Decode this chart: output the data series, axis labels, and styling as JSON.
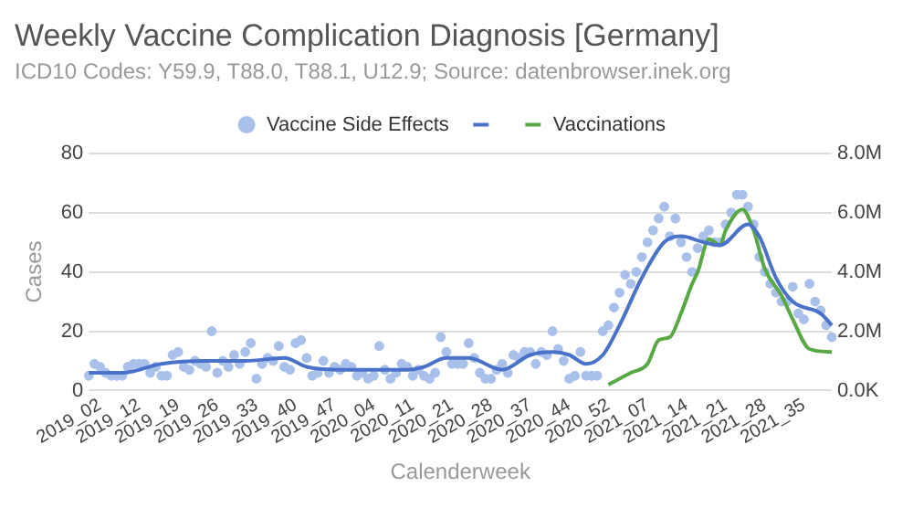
{
  "chart_data": {
    "type": "line",
    "title": "Weekly Vaccine Complication Diagnosis [Germany]",
    "subtitle": "ICD10 Codes: Y59.9, T88.0, T88.1, U12.9; Source: datenbrowser.inek.org",
    "xlabel": "Calenderweek",
    "ylabel": "Cases",
    "categories": [
      null,
      null,
      "2019_02",
      null,
      null,
      null,
      null,
      null,
      null,
      "2019_12",
      null,
      null,
      null,
      null,
      null,
      null,
      "2019_19",
      null,
      null,
      null,
      null,
      null,
      null,
      "2019_26",
      null,
      null,
      null,
      null,
      null,
      null,
      "2019_33",
      null,
      null,
      null,
      null,
      null,
      null,
      "2019_40",
      null,
      null,
      null,
      null,
      null,
      null,
      "2019_47",
      null,
      null,
      null,
      null,
      null,
      null,
      "2020_04",
      null,
      null,
      null,
      null,
      null,
      null,
      "2020_11",
      null,
      null,
      null,
      null,
      null,
      null,
      "2020_21",
      null,
      null,
      null,
      null,
      null,
      null,
      "2020_28",
      null,
      null,
      null,
      null,
      null,
      null,
      "2020_37",
      null,
      null,
      null,
      null,
      null,
      null,
      "2020_44",
      null,
      null,
      null,
      null,
      null,
      null,
      "2020_52",
      null,
      null,
      null,
      null,
      null,
      null,
      "2021_07",
      null,
      null,
      null,
      null,
      null,
      null,
      "2021_14",
      null,
      null,
      null,
      null,
      null,
      null,
      "2021_21",
      null,
      null,
      null,
      null,
      null,
      null,
      "2021_28",
      null,
      null,
      null,
      null,
      null,
      null,
      "2021_35",
      null,
      null,
      null,
      null,
      null
    ],
    "series": [
      {
        "type": "scatter",
        "name": "Vaccine Side Effects",
        "color": "#a9c1ea",
        "marker": "circle",
        "values": [
          5,
          9,
          8,
          6,
          5,
          5,
          5,
          8,
          9,
          9,
          9,
          6,
          8,
          5,
          5,
          12,
          13,
          8,
          7,
          10,
          9,
          8,
          20,
          6,
          10,
          8,
          12,
          9,
          13,
          16,
          4,
          9,
          11,
          10,
          15,
          8,
          7,
          16,
          17,
          11,
          5,
          6,
          10,
          6,
          8,
          7,
          9,
          8,
          5,
          6,
          4,
          5,
          15,
          7,
          4,
          6,
          9,
          8,
          5,
          7,
          5,
          4,
          6,
          18,
          13,
          9,
          9,
          9,
          16,
          11,
          6,
          4,
          4,
          7,
          9,
          6,
          12,
          11,
          13,
          13,
          9,
          13,
          12,
          20,
          14,
          10,
          4,
          5,
          13,
          5,
          5,
          5,
          20,
          22,
          28,
          33,
          39,
          36,
          40,
          45,
          50,
          54,
          58,
          62,
          52,
          58,
          50,
          45,
          40,
          48,
          52,
          54,
          50,
          50,
          56,
          60,
          66,
          66,
          62,
          56,
          45,
          40,
          36,
          33,
          30,
          30,
          35,
          26,
          24,
          36,
          30,
          27,
          22,
          18
        ]
      },
      {
        "type": "line",
        "color": "#4a72c8",
        "values": [
          6,
          null,
          null,
          null,
          null,
          null,
          6,
          null,
          null,
          null,
          null,
          null,
          null,
          9,
          null,
          null,
          null,
          null,
          null,
          null,
          null,
          10,
          null,
          null,
          null,
          null,
          null,
          null,
          10,
          null,
          null,
          null,
          null,
          null,
          null,
          11,
          null,
          null,
          null,
          8,
          null,
          null,
          null,
          null,
          null,
          null,
          7,
          null,
          null,
          null,
          null,
          null,
          null,
          null,
          null,
          null,
          null,
          7,
          null,
          null,
          8,
          null,
          null,
          null,
          11,
          null,
          null,
          null,
          11,
          null,
          null,
          null,
          null,
          null,
          7,
          null,
          null,
          null,
          null,
          12,
          null,
          null,
          null,
          13,
          null,
          null,
          12,
          null,
          null,
          9,
          null,
          null,
          12,
          null,
          null,
          22,
          null,
          null,
          null,
          38,
          null,
          null,
          null,
          50,
          null,
          null,
          52,
          null,
          null,
          null,
          50,
          null,
          null,
          49,
          null,
          null,
          null,
          null,
          56,
          null,
          52,
          null,
          null,
          38,
          null,
          null,
          30,
          null,
          null,
          null,
          null,
          26,
          null,
          22
        ]
      },
      {
        "type": "line",
        "name": "Vaccinations",
        "color": "#58a845",
        "axis": "y2",
        "values": [
          null,
          null,
          null,
          null,
          null,
          null,
          null,
          null,
          null,
          null,
          null,
          null,
          null,
          null,
          null,
          null,
          null,
          null,
          null,
          null,
          null,
          null,
          null,
          null,
          null,
          null,
          null,
          null,
          null,
          null,
          null,
          null,
          null,
          null,
          null,
          null,
          null,
          null,
          null,
          null,
          null,
          null,
          null,
          null,
          null,
          null,
          null,
          null,
          null,
          null,
          null,
          null,
          null,
          null,
          null,
          null,
          null,
          null,
          null,
          null,
          null,
          null,
          null,
          null,
          null,
          null,
          null,
          null,
          null,
          null,
          null,
          null,
          null,
          null,
          null,
          null,
          null,
          null,
          null,
          null,
          null,
          null,
          null,
          null,
          null,
          null,
          null,
          null,
          null,
          null,
          null,
          null,
          null,
          200000,
          null,
          null,
          null,
          600000,
          null,
          null,
          900000,
          null,
          1700000,
          null,
          1800000,
          null,
          2600000,
          null,
          3600000,
          4000000,
          null,
          5100000,
          null,
          4900000,
          5400000,
          null,
          null,
          6100000,
          null,
          5400000,
          null,
          4100000,
          null,
          null,
          3200000,
          null,
          2400000,
          null,
          null,
          1400000,
          null,
          null,
          null,
          1300000
        ]
      }
    ],
    "ylim": [
      0,
      80
    ],
    "yticks": [
      0,
      20,
      40,
      60,
      80
    ],
    "y2lim": [
      0,
      8000000
    ],
    "y2ticks": [
      {
        "value": 0,
        "label": "0.0K"
      },
      {
        "value": 2000000,
        "label": "2.0M"
      },
      {
        "value": 4000000,
        "label": "4.0M"
      },
      {
        "value": 6000000,
        "label": "6.0M"
      },
      {
        "value": 8000000,
        "label": "8.0M"
      }
    ],
    "grid": "y",
    "legend": "top"
  }
}
